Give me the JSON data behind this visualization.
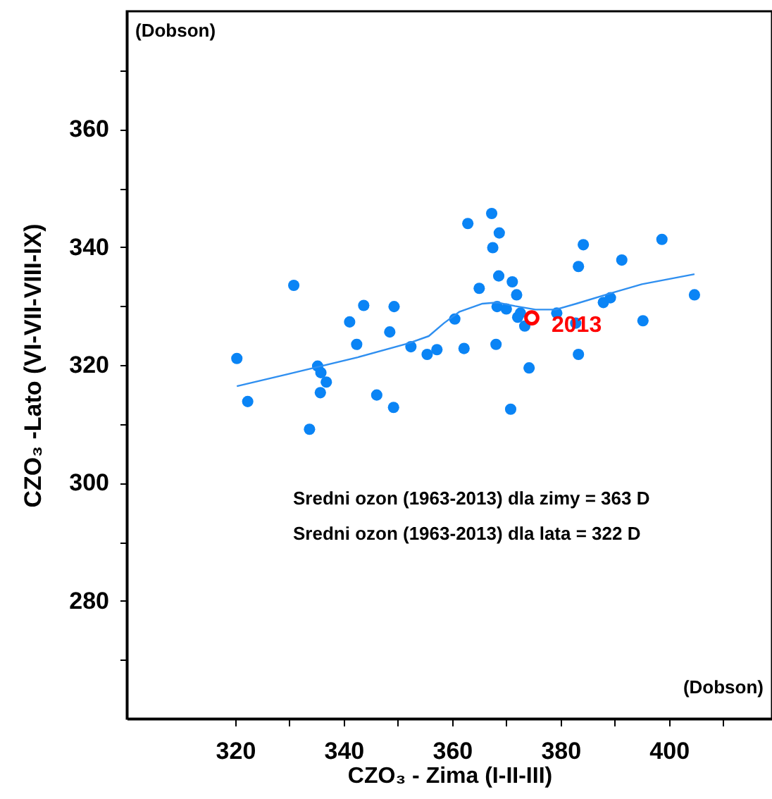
{
  "chart_data": {
    "type": "scatter",
    "xlabel": "CZO₃ - Zima (I-II-III)",
    "ylabel": "CZO₃ -Lato (VI-VII-VIII-IX)",
    "xlim": [
      300,
      419
    ],
    "ylim": [
      260,
      380
    ],
    "xticks": [
      320,
      {
        "value": 330,
        "label": null
      },
      340,
      {
        "value": 350,
        "label": null
      },
      360,
      {
        "value": 370,
        "label": null
      },
      380,
      {
        "value": 390,
        "label": null
      },
      400,
      {
        "value": 410,
        "label": null
      }
    ],
    "yticks": [
      {
        "value": 270,
        "label": null
      },
      280,
      {
        "value": 290,
        "label": null
      },
      300,
      {
        "value": 310,
        "label": null
      },
      320,
      {
        "value": 330,
        "label": null
      },
      340,
      {
        "value": 350,
        "label": null
      },
      360,
      {
        "value": 370,
        "label": null
      }
    ],
    "grid": false,
    "marker": "circle",
    "series": [
      {
        "color": "#0a84f5",
        "x": [
          320.3,
          322.3,
          330.8,
          333.7,
          335.2,
          335.8,
          335.7,
          336.8,
          341.1,
          342.4,
          343.7,
          346.1,
          348.5,
          349.3,
          349.2,
          352.4,
          355.4,
          357.2,
          360.5,
          362.2,
          362.9,
          365.0,
          367.3,
          367.5,
          368.7,
          368.6,
          368.3,
          368.1,
          370.0,
          371.1,
          371.9,
          370.8,
          372.1,
          372.6,
          373.4,
          374.2,
          379.3,
          382.8,
          383.3,
          384.2,
          383.3,
          387.9,
          389.2,
          391.3,
          395.2,
          398.7,
          404.7
        ],
        "values": [
          321.1,
          313.8,
          333.5,
          309.1,
          319.8,
          318.7,
          315.3,
          317.1,
          327.3,
          323.5,
          330.1,
          314.9,
          325.6,
          329.9,
          312.8,
          323.1,
          321.8,
          322.6,
          327.8,
          322.8,
          344.0,
          333.0,
          345.7,
          339.9,
          342.4,
          335.1,
          329.9,
          323.5,
          329.5,
          334.1,
          331.9,
          312.5,
          328.1,
          328.8,
          326.6,
          319.5,
          328.8,
          327.1,
          336.7,
          340.4,
          321.8,
          330.6,
          331.4,
          337.8,
          327.5,
          341.3,
          331.9
        ]
      },
      {
        "color": "#ff0000",
        "x": [
          374.7
        ],
        "values": [
          328.0
        ]
      },
      {
        "type": "line",
        "marker": "none",
        "color": "#2f8ff0",
        "x": [
          320.3,
          329.5,
          342.6,
          352.0,
          355.7,
          358.5,
          361.3,
          365.6,
          368.4,
          371.6,
          375.4,
          379.1,
          382.9,
          389.4,
          395.0,
          404.7
        ],
        "values": [
          316.4,
          318.4,
          321.3,
          323.7,
          324.9,
          327.1,
          329.0,
          330.4,
          330.6,
          330.0,
          329.4,
          329.4,
          330.4,
          332.2,
          333.7,
          335.4
        ]
      }
    ],
    "annotations": [
      "(Dobson)",
      "(Dobson)",
      "Sredni ozon (1963-2013) dla zimy = 363 D",
      "Sredni ozon (1963-2013) dla lata =  322 D",
      {
        "text": "2013",
        "x": 374.7,
        "y": 328.0
      }
    ]
  }
}
